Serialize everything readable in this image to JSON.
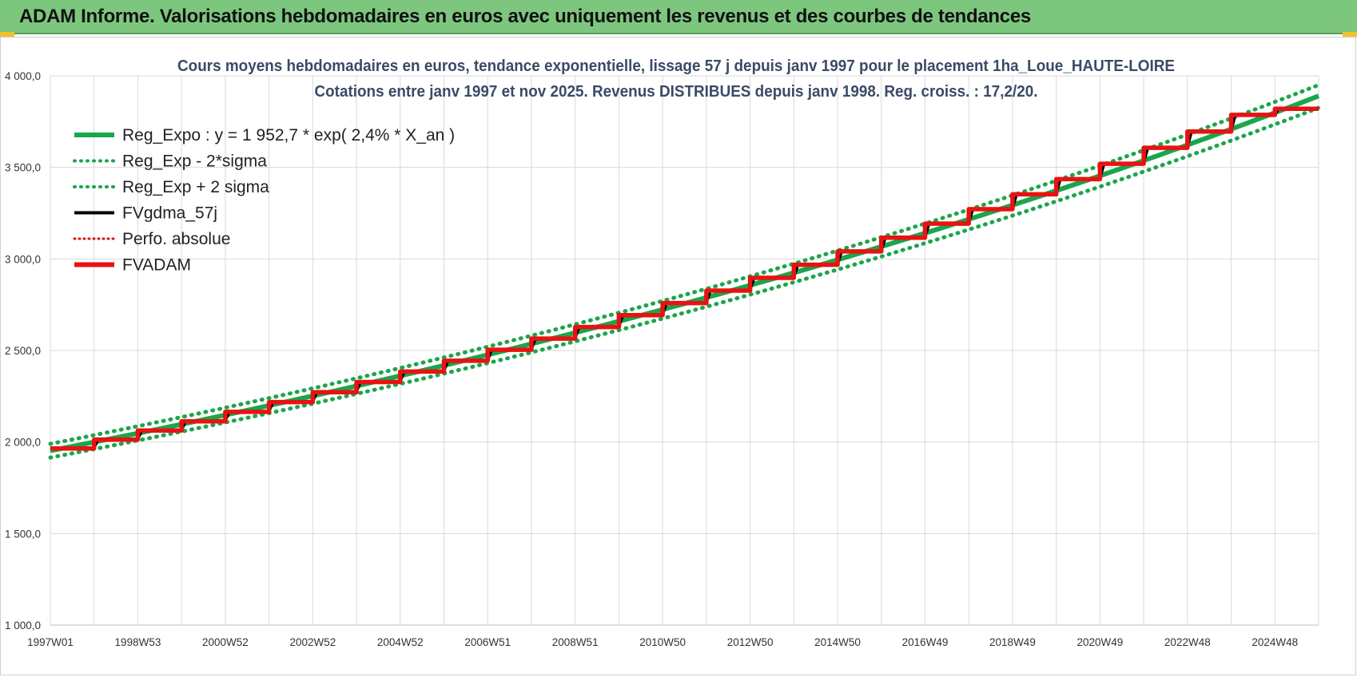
{
  "header": {
    "title": "ADAM Informe. Valorisations hebdomadaires en euros avec uniquement les revenus et des courbes de tendances"
  },
  "colors": {
    "banner": "#7dc67e",
    "reg_expo": "#1aa64a",
    "reg_band": "#1aa64a",
    "fvgdma": "#000000",
    "perfo": "#e01010",
    "fvadam": "#e81212"
  },
  "chart_data": {
    "type": "line",
    "title_lines": [
      "Cours moyens hebdomadaires en euros, tendance exponentielle, lissage 57 j depuis janv 1997  pour le placement 1ha_Loue_HAUTE-LOIRE",
      "Cotations entre janv 1997 et nov 2025. Revenus  DISTRIBUES depuis janv 1998.  Reg. croiss. : 17,2/20."
    ],
    "ylim": [
      1000,
      4000
    ],
    "y_ticks": [
      "1 000,0",
      "1 500,0",
      "2 000,0",
      "2 500,0",
      "3 000,0",
      "3 500,0",
      "4 000,0"
    ],
    "y_tick_values": [
      1000,
      1500,
      2000,
      2500,
      3000,
      3500,
      4000
    ],
    "x_ticks": [
      "1997W01",
      "1998W53",
      "2000W52",
      "2002W52",
      "2004W52",
      "2006W51",
      "2008W51",
      "2010W50",
      "2012W50",
      "2014W50",
      "2016W49",
      "2018W49",
      "2020W49",
      "2022W48",
      "2024W48"
    ],
    "x_tick_years": [
      1997.0,
      1999.0,
      2001.0,
      2003.0,
      2005.0,
      2007.0,
      2009.0,
      2011.0,
      2013.0,
      2015.0,
      2017.0,
      2019.0,
      2021.0,
      2023.0,
      2025.0
    ],
    "xlim": [
      1997.0,
      2026.0
    ],
    "grid": true,
    "legend_position": "top-left",
    "legend": [
      {
        "name": "Reg_Expo : y = 1 952,7 * exp( 2,4% *  X_an )",
        "style": "solid",
        "color": "#1aa64a"
      },
      {
        "name": "Reg_Exp - 2*sigma",
        "style": "dotted",
        "color": "#1aa64a"
      },
      {
        "name": "Reg_Exp + 2 sigma",
        "style": "dotted",
        "color": "#1aa64a"
      },
      {
        "name": "FVgdma_57j",
        "style": "solid",
        "color": "#000000"
      },
      {
        "name": "Perfo. absolue",
        "style": "dotted",
        "color": "#e01010"
      },
      {
        "name": "FVADAM",
        "style": "solid",
        "color": "#e81212"
      }
    ],
    "series": [
      {
        "name": "Reg_Expo : y = 1 952,7 * exp( 2,4% *  X_an )",
        "x": [
          1997.0,
          2026.0
        ],
        "values": [
          1952.7,
          3890
        ],
        "curve": "exponential",
        "rate": 0.024
      },
      {
        "name": "Reg_Exp - 2*sigma",
        "x": [
          1997.0,
          2026.0
        ],
        "values": [
          1915,
          3825
        ],
        "curve": "exponential",
        "rate": 0.024
      },
      {
        "name": "Reg_Exp + 2 sigma",
        "x": [
          1997.0,
          2026.0
        ],
        "values": [
          1990,
          3950
        ],
        "curve": "exponential",
        "rate": 0.024
      },
      {
        "name": "FVADAM",
        "step_years": [
          1997,
          1998,
          1999,
          2000,
          2001,
          2002,
          2003,
          2004,
          2005,
          2006,
          2007,
          2008,
          2009,
          2010,
          2011,
          2012,
          2013,
          2014,
          2015,
          2016,
          2017,
          2018,
          2019,
          2020,
          2021,
          2022,
          2023,
          2024,
          2025
        ],
        "values": [
          1965,
          2013,
          2063,
          2113,
          2165,
          2218,
          2272,
          2328,
          2385,
          2444,
          2504,
          2565,
          2628,
          2693,
          2759,
          2827,
          2897,
          2968,
          3041,
          3116,
          3193,
          3272,
          3353,
          3436,
          3520,
          3607,
          3696,
          3787,
          3820
        ]
      },
      {
        "name": "FVgdma_57j",
        "smoothed_of": "FVADAM",
        "window_days": 57
      }
    ]
  }
}
